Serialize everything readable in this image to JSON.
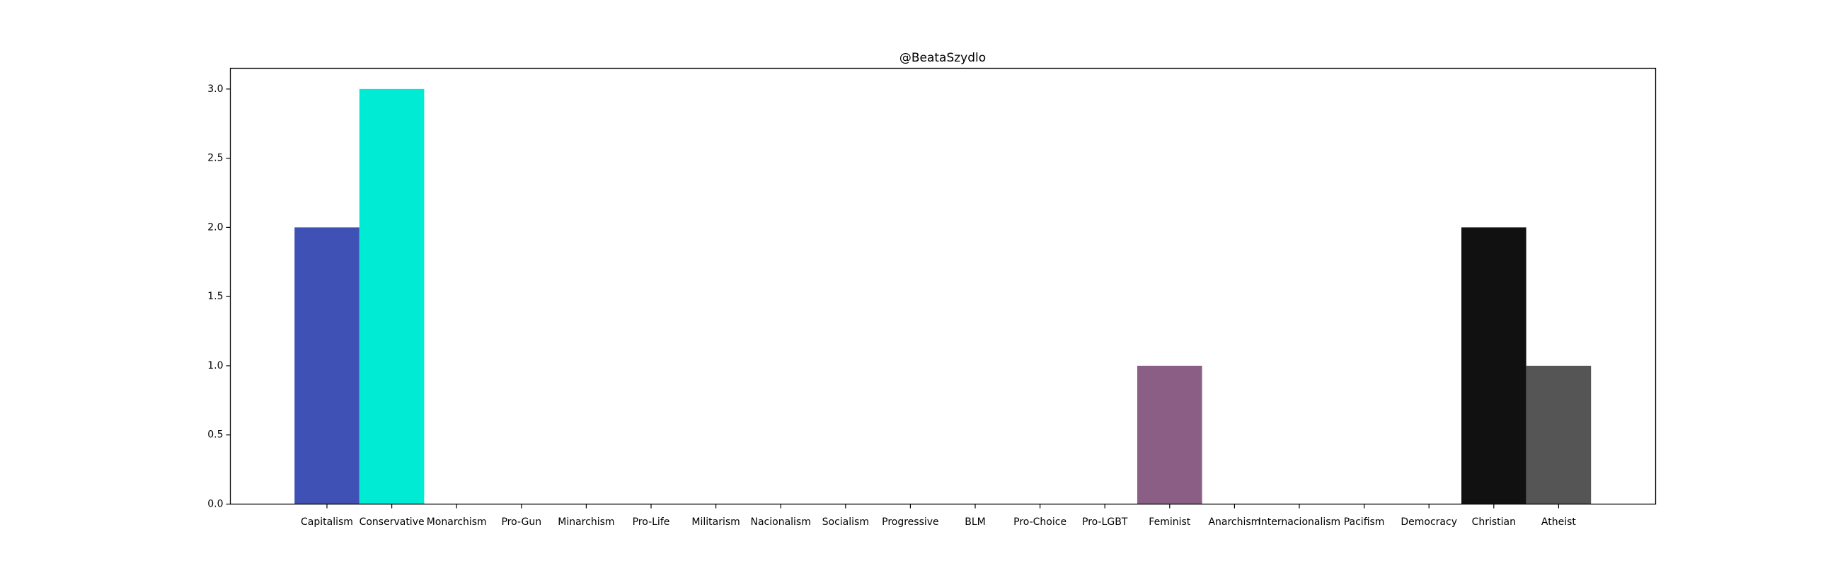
{
  "chart_data": {
    "type": "bar",
    "title": "@BeataSzydlo",
    "xlabel": "",
    "ylabel": "",
    "categories": [
      "Capitalism",
      "Conservative",
      "Monarchism",
      "Pro-Gun",
      "Minarchism",
      "Pro-Life",
      "Militarism",
      "Nacionalism",
      "Socialism",
      "Progressive",
      "BLM",
      "Pro-Choice",
      "Pro-LGBT",
      "Feminist",
      "Anarchism",
      "Internacionalism",
      "Pacifism",
      "Democracy",
      "Christian",
      "Atheist"
    ],
    "values": [
      2,
      3,
      0,
      0,
      0,
      0,
      0,
      0,
      0,
      0,
      0,
      0,
      0,
      1,
      0,
      0,
      0,
      0,
      2,
      1
    ],
    "colors": [
      "#4051b5",
      "#00ebd3",
      "#ffffff",
      "#ffffff",
      "#ffffff",
      "#ffffff",
      "#ffffff",
      "#ffffff",
      "#ffffff",
      "#ffffff",
      "#ffffff",
      "#ffffff",
      "#ffffff",
      "#8b5f85",
      "#ffffff",
      "#ffffff",
      "#ffffff",
      "#ffffff",
      "#111111",
      "#555555"
    ],
    "ylim": [
      0,
      3.15
    ],
    "yticks": [
      "0.0",
      "0.5",
      "1.0",
      "1.5",
      "2.0",
      "2.5",
      "3.0"
    ],
    "grid": false,
    "legend": false
  }
}
